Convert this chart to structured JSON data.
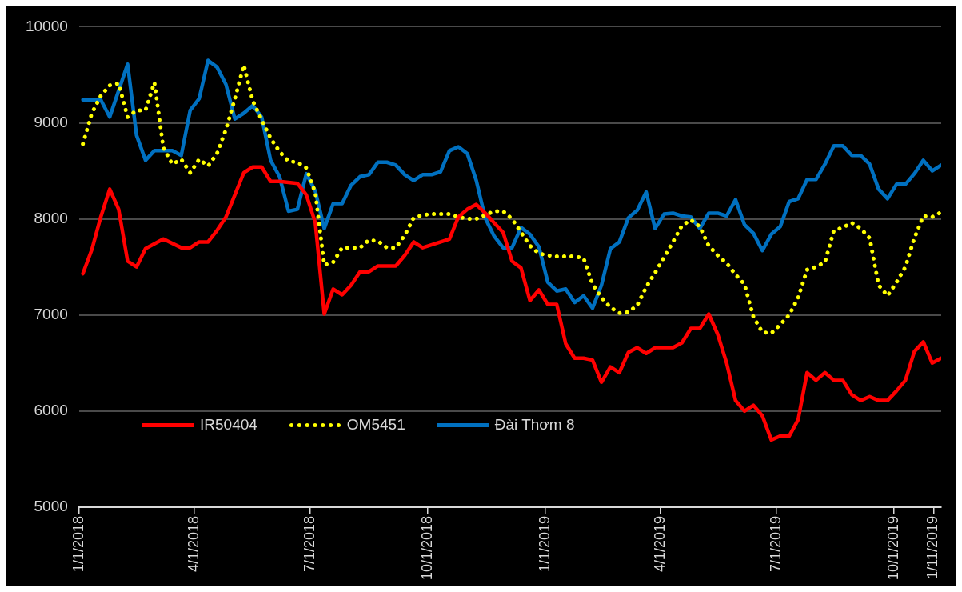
{
  "chart_data": {
    "type": "line",
    "x": [
      "2018-01-04",
      "2018-01-11",
      "2018-01-18",
      "2018-01-25",
      "2018-02-01",
      "2018-02-08",
      "2018-02-15",
      "2018-02-22",
      "2018-03-01",
      "2018-03-08",
      "2018-03-15",
      "2018-03-22",
      "2018-03-29",
      "2018-04-05",
      "2018-04-12",
      "2018-04-19",
      "2018-04-26",
      "2018-05-03",
      "2018-05-10",
      "2018-05-17",
      "2018-05-24",
      "2018-05-31",
      "2018-06-07",
      "2018-06-14",
      "2018-06-21",
      "2018-06-28",
      "2018-07-05",
      "2018-07-12",
      "2018-07-19",
      "2018-07-26",
      "2018-08-02",
      "2018-08-09",
      "2018-08-16",
      "2018-08-23",
      "2018-08-30",
      "2018-09-06",
      "2018-09-13",
      "2018-09-20",
      "2018-09-27",
      "2018-10-04",
      "2018-10-11",
      "2018-10-18",
      "2018-10-25",
      "2018-11-01",
      "2018-11-08",
      "2018-11-15",
      "2018-11-22",
      "2018-11-29",
      "2018-12-06",
      "2018-12-13",
      "2018-12-20",
      "2018-12-27",
      "2019-01-03",
      "2019-01-10",
      "2019-01-17",
      "2019-01-24",
      "2019-01-31",
      "2019-02-07",
      "2019-02-14",
      "2019-02-21",
      "2019-02-28",
      "2019-03-07",
      "2019-03-14",
      "2019-03-21",
      "2019-03-28",
      "2019-04-04",
      "2019-04-11",
      "2019-04-18",
      "2019-04-25",
      "2019-05-02",
      "2019-05-09",
      "2019-05-16",
      "2019-05-23",
      "2019-05-30",
      "2019-06-06",
      "2019-06-13",
      "2019-06-20",
      "2019-06-27",
      "2019-07-04",
      "2019-07-11",
      "2019-07-18",
      "2019-07-25",
      "2019-08-01",
      "2019-08-08",
      "2019-08-15",
      "2019-08-22",
      "2019-08-29",
      "2019-09-05",
      "2019-09-12",
      "2019-09-19",
      "2019-09-26",
      "2019-10-03",
      "2019-10-10",
      "2019-10-17",
      "2019-10-24",
      "2019-10-31",
      "2019-11-07"
    ],
    "series": [
      {
        "name": "IR50404",
        "color": "#ff0000",
        "line_style": "solid",
        "x": [
          "2018-01-04",
          "2018-01-11",
          "2018-01-18",
          "2018-01-25",
          "2018-02-01",
          "2018-02-08",
          "2018-02-15",
          "2018-02-22",
          "2018-03-08",
          "2018-03-22",
          "2018-03-29",
          "2018-04-05",
          "2018-04-12",
          "2018-04-19",
          "2018-04-26",
          "2018-05-10",
          "2018-05-17",
          "2018-05-24",
          "2018-05-31",
          "2018-06-07",
          "2018-06-21",
          "2018-06-28",
          "2018-07-05",
          "2018-07-12",
          "2018-07-19",
          "2018-07-26",
          "2018-08-02",
          "2018-08-09",
          "2018-08-16",
          "2018-08-23",
          "2018-09-06",
          "2018-09-13",
          "2018-09-20",
          "2018-09-27",
          "2018-10-18",
          "2018-10-25",
          "2018-11-01",
          "2018-11-08",
          "2018-11-15",
          "2018-11-22",
          "2018-11-29",
          "2018-12-06",
          "2018-12-13",
          "2018-12-20",
          "2018-12-27",
          "2019-01-03",
          "2019-01-10",
          "2019-01-17",
          "2019-01-24",
          "2019-01-31",
          "2019-02-07",
          "2019-02-14",
          "2019-02-21",
          "2019-02-28",
          "2019-03-07",
          "2019-03-14",
          "2019-03-21",
          "2019-03-28",
          "2019-04-11",
          "2019-04-18",
          "2019-04-25",
          "2019-05-02",
          "2019-05-09",
          "2019-05-16",
          "2019-05-23",
          "2019-05-30",
          "2019-06-06",
          "2019-06-13",
          "2019-06-20",
          "2019-06-27",
          "2019-07-04",
          "2019-07-11",
          "2019-07-18",
          "2019-07-25",
          "2019-08-01",
          "2019-08-08",
          "2019-08-15",
          "2019-08-22",
          "2019-08-29",
          "2019-09-05",
          "2019-09-12",
          "2019-09-19",
          "2019-09-26",
          "2019-10-03",
          "2019-10-10",
          "2019-10-17",
          "2019-10-24",
          "2019-10-31",
          "2019-11-07"
        ],
        "values": [
          7430,
          7680,
          8020,
          8310,
          8100,
          7560,
          7500,
          7690,
          7790,
          7700,
          7700,
          7760,
          7760,
          7880,
          8020,
          8480,
          8540,
          8540,
          8390,
          8390,
          8370,
          8250,
          7960,
          7010,
          7270,
          7210,
          7310,
          7450,
          7450,
          7510,
          7510,
          7620,
          7760,
          7700,
          7790,
          8020,
          8100,
          8150,
          8060,
          7960,
          7860,
          7560,
          7490,
          7150,
          7260,
          7110,
          7110,
          6700,
          6550,
          6550,
          6530,
          6300,
          6460,
          6400,
          6610,
          6660,
          6600,
          6660,
          6660,
          6710,
          6860,
          6860,
          7010,
          6800,
          6500,
          6110,
          6000,
          6060,
          5950,
          5700,
          5740,
          5740,
          5910,
          6400,
          6320,
          6400,
          6320,
          6320,
          6170,
          6110,
          6150,
          6110,
          6110,
          6210,
          6320,
          6620,
          6720,
          6500,
          6550
        ]
      },
      {
        "name": "OM5451",
        "color": "#ffff00",
        "line_style": "dotted",
        "values": [
          8780,
          9100,
          9280,
          9390,
          9410,
          9060,
          9130,
          9130,
          9420,
          8740,
          8570,
          8620,
          8480,
          8620,
          8550,
          8680,
          8930,
          9250,
          9600,
          9230,
          9030,
          8840,
          8700,
          8600,
          8590,
          8530,
          8270,
          7520,
          7550,
          7700,
          7700,
          7700,
          7780,
          7770,
          7700,
          7700,
          7830,
          8010,
          8040,
          8050,
          8050,
          8050,
          8020,
          8000,
          8000,
          8040,
          8080,
          8080,
          8000,
          7860,
          7720,
          7640,
          7620,
          7610,
          7610,
          7610,
          7590,
          7320,
          7180,
          7080,
          7020,
          7030,
          7100,
          7290,
          7440,
          7600,
          7760,
          7930,
          7990,
          7920,
          7720,
          7620,
          7540,
          7420,
          7320,
          6980,
          6820,
          6810,
          6900,
          7000,
          7180,
          7470,
          7500,
          7550,
          7880,
          7910,
          7960,
          7900,
          7800,
          7310,
          7200,
          7340,
          7500,
          7800,
          8030,
          8020,
          8070
        ]
      },
      {
        "name": "Đài Thơm 8",
        "color": "#0070c0",
        "line_style": "solid",
        "x": [
          "2018-01-04",
          "2018-01-18",
          "2018-01-25",
          "2018-02-08",
          "2018-02-15",
          "2018-02-22",
          "2018-03-01",
          "2018-03-15",
          "2018-03-22",
          "2018-03-29",
          "2018-04-05",
          "2018-04-12",
          "2018-04-19",
          "2018-04-26",
          "2018-05-03",
          "2018-05-10",
          "2018-05-17",
          "2018-05-24",
          "2018-05-31",
          "2018-06-07",
          "2018-06-14",
          "2018-06-21",
          "2018-06-28",
          "2018-07-05",
          "2018-07-12",
          "2018-07-19",
          "2018-07-26",
          "2018-08-02",
          "2018-08-09",
          "2018-08-16",
          "2018-08-23",
          "2018-08-30",
          "2018-09-06",
          "2018-09-13",
          "2018-09-20",
          "2018-09-27",
          "2018-10-04",
          "2018-10-11",
          "2018-10-18",
          "2018-10-25",
          "2018-11-01",
          "2018-11-08",
          "2018-11-15",
          "2018-11-22",
          "2018-11-29",
          "2018-12-06",
          "2018-12-13",
          "2018-12-20",
          "2018-12-27",
          "2019-01-03",
          "2019-01-10",
          "2019-01-17",
          "2019-01-24",
          "2019-01-31",
          "2019-02-07",
          "2019-02-14",
          "2019-02-21",
          "2019-02-28",
          "2019-03-07",
          "2019-03-14",
          "2019-03-21",
          "2019-03-28",
          "2019-04-04",
          "2019-04-11",
          "2019-04-18",
          "2019-04-25",
          "2019-05-02",
          "2019-05-09",
          "2019-05-16",
          "2019-05-23",
          "2019-05-30",
          "2019-06-06",
          "2019-06-13",
          "2019-06-20",
          "2019-06-27",
          "2019-07-04",
          "2019-07-11",
          "2019-07-18",
          "2019-07-25",
          "2019-08-01",
          "2019-08-08",
          "2019-08-15",
          "2019-08-22",
          "2019-08-29",
          "2019-09-05",
          "2019-09-12",
          "2019-09-19",
          "2019-09-26",
          "2019-10-03",
          "2019-10-10",
          "2019-10-17",
          "2019-10-24",
          "2019-10-31",
          "2019-11-07"
        ],
        "values": [
          9240,
          9240,
          9060,
          9610,
          8870,
          8610,
          8710,
          8710,
          8660,
          9130,
          9250,
          9650,
          9580,
          9400,
          9040,
          9100,
          9180,
          9060,
          8610,
          8440,
          8080,
          8100,
          8470,
          8290,
          7900,
          8160,
          8160,
          8350,
          8440,
          8460,
          8590,
          8590,
          8560,
          8460,
          8400,
          8460,
          8460,
          8490,
          8710,
          8750,
          8680,
          8400,
          8010,
          7820,
          7700,
          7700,
          7910,
          7840,
          7710,
          7340,
          7250,
          7270,
          7130,
          7200,
          7070,
          7310,
          7690,
          7760,
          8010,
          8090,
          8280,
          7900,
          8050,
          8060,
          8030,
          8020,
          7900,
          8060,
          8060,
          8030,
          8200,
          7940,
          7850,
          7670,
          7840,
          7920,
          8180,
          8210,
          8410,
          8410,
          8570,
          8760,
          8760,
          8660,
          8660,
          8570,
          8310,
          8210,
          8360,
          8360,
          8470,
          8610,
          8500,
          8560
        ]
      }
    ],
    "xlim": [
      "2018-01-01",
      "2019-11-07"
    ],
    "xticks": [
      {
        "value": "2018-01-01",
        "label": "1/1/2018"
      },
      {
        "value": "2018-04-01",
        "label": "4/1/2018"
      },
      {
        "value": "2018-07-01",
        "label": "7/1/2018"
      },
      {
        "value": "2018-10-01",
        "label": "10/1/2018"
      },
      {
        "value": "2019-01-01",
        "label": "1/1/2019"
      },
      {
        "value": "2019-04-01",
        "label": "4/1/2019"
      },
      {
        "value": "2019-07-01",
        "label": "7/1/2019"
      },
      {
        "value": "2019-10-01",
        "label": "10/1/2019"
      },
      {
        "value": "2019-11-01",
        "label": "1/11/2019"
      }
    ],
    "ylim": [
      5000,
      10000
    ],
    "yticks": [
      5000,
      6000,
      7000,
      8000,
      9000,
      10000
    ],
    "grid": "y",
    "legend": "bottom left"
  }
}
